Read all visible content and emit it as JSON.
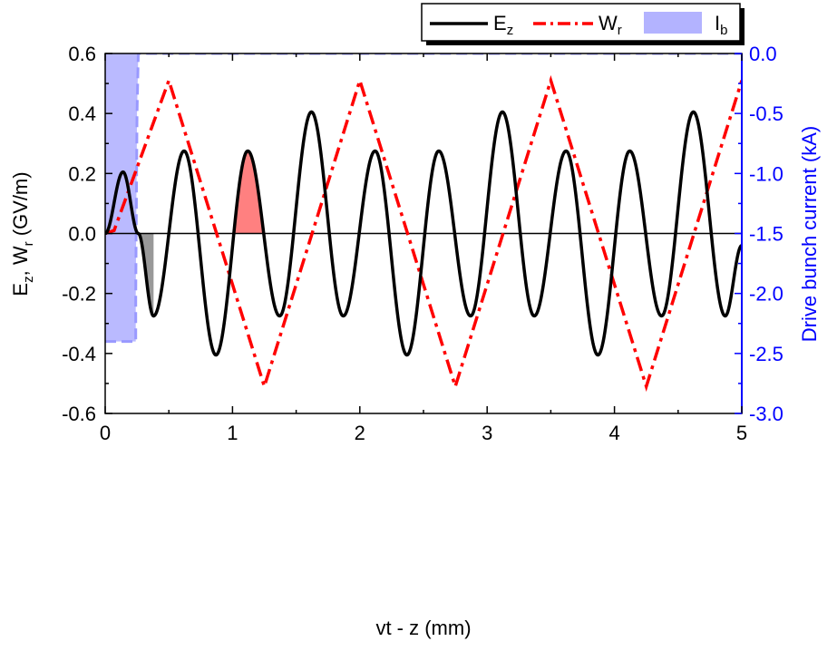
{
  "chart_data": {
    "type": "line",
    "x_axis": {
      "label": "vt - z (mm)",
      "range": [
        0,
        5
      ],
      "ticks": [
        0,
        1,
        2,
        3,
        4,
        5
      ],
      "tick_labels": [
        "0",
        "1",
        "2",
        "3",
        "4",
        "5"
      ]
    },
    "y_left": {
      "label_parts": [
        "E",
        "z",
        ", W",
        "r",
        " (GV/m)"
      ],
      "range": [
        -0.6,
        0.6
      ],
      "ticks": [
        0.6,
        0.4,
        0.2,
        0.0,
        -0.2,
        -0.4,
        -0.6
      ],
      "tick_labels": [
        "0.6",
        "0.4",
        "0.2",
        "0.0",
        "-0.2",
        "-0.4",
        "-0.6"
      ],
      "color": "#000000"
    },
    "y_right": {
      "label": "Drive bunch current (kA)",
      "range": [
        -3.0,
        0.0
      ],
      "ticks": [
        0.0,
        -0.5,
        -1.0,
        -1.5,
        -2.0,
        -2.5,
        -3.0
      ],
      "tick_labels": [
        "0.0",
        "-0.5",
        "-1.0",
        "-1.5",
        "-2.0",
        "-2.5",
        "-3.0"
      ],
      "color": "#0000ff"
    },
    "legend": {
      "placement": "top-right",
      "entries": [
        {
          "name": "E",
          "sub": "z",
          "style": "solid",
          "color": "#000000"
        },
        {
          "name": "W",
          "sub": "r",
          "style": "dash-dot",
          "color": "#ff0000"
        },
        {
          "name": "I",
          "sub": "b",
          "style": "fill",
          "color": "#b3b3ff"
        }
      ]
    },
    "series": [
      {
        "key": "Ez",
        "color": "#000000",
        "style": "solid",
        "x": [
          0.0,
          0.14,
          0.26,
          0.38,
          0.62,
          0.87,
          1.12,
          1.37,
          1.62,
          1.87,
          2.12,
          2.37,
          2.62,
          2.87,
          3.12,
          3.37,
          3.62,
          3.87,
          4.12,
          4.37,
          4.62,
          4.87,
          5.0
        ],
        "y": [
          0.0,
          0.205,
          0.0,
          -0.275,
          0.275,
          -0.405,
          0.275,
          -0.275,
          0.405,
          -0.275,
          0.275,
          -0.405,
          0.275,
          -0.275,
          0.405,
          -0.275,
          0.275,
          -0.405,
          0.275,
          -0.275,
          0.405,
          -0.275,
          -0.04
        ]
      },
      {
        "key": "Wr",
        "color": "#ff0000",
        "style": "dash-dot",
        "x": [
          0.0,
          0.07,
          0.5,
          1.25,
          2.0,
          2.75,
          3.5,
          4.25,
          5.0
        ],
        "y": [
          0.0,
          0.01,
          0.51,
          -0.51,
          0.51,
          -0.51,
          0.51,
          -0.51,
          0.51
        ]
      },
      {
        "key": "Ib",
        "color": "#b3b3ff",
        "style": "fill",
        "axis": "right",
        "x": [
          0.0,
          0.24,
          0.24,
          0.25,
          0.26,
          5.0
        ],
        "y": [
          -2.4,
          -2.4,
          -2.0,
          -0.5,
          0.0,
          0.0
        ]
      }
    ],
    "shaded_regions": [
      {
        "name": "decelerating-region",
        "x_start": 0.26,
        "x_end": 0.38,
        "color": "#999999"
      },
      {
        "name": "accelerating-region",
        "x_start": 1.0,
        "x_end": 1.25,
        "color": "#ff8080"
      }
    ],
    "zero_line": true,
    "grid": false
  }
}
